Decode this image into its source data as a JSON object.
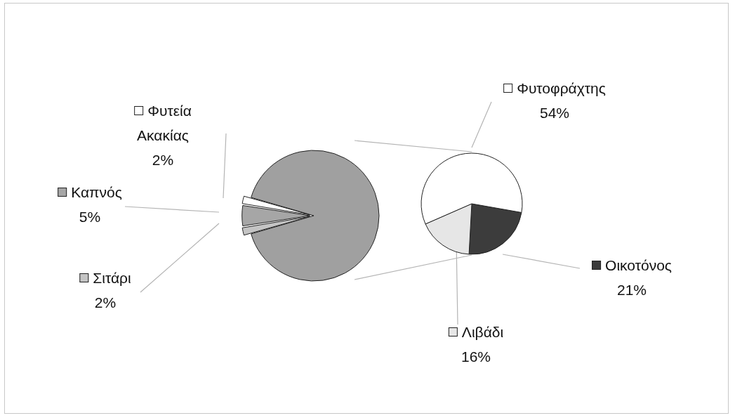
{
  "chart_data": [
    {
      "type": "pie",
      "legend": "left",
      "categories": [
        "Σιτάρι",
        "Καπνός",
        "Φυτεία Ακακίας",
        null
      ],
      "values": [
        2,
        5,
        2,
        91
      ],
      "value_labels": [
        "2%",
        "5%",
        "2%",
        null
      ],
      "colors": [
        "#c4c4c4",
        "#a6a6a6",
        "#ffffff",
        "#a0a0a0"
      ]
    },
    {
      "type": "pie",
      "legend": "right",
      "categories": [
        "Οικοτόνος",
        "Λιβάδι",
        "Φυτοφράχτης"
      ],
      "values": [
        21,
        16,
        54
      ],
      "value_labels": [
        "21%",
        "16%",
        "54%"
      ],
      "colors": [
        "#3c3c3c",
        "#e6e6e6",
        "#ffffff"
      ]
    }
  ]
}
